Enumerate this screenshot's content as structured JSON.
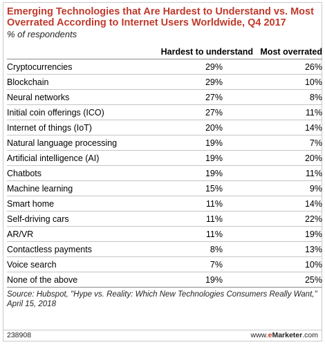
{
  "chart_data": {
    "type": "table",
    "title": "Emerging Technologies that Are Hardest to Understand vs. Most Overrated According to Internet Users Worldwide, Q4 2017",
    "subtitle": "% of respondents",
    "columns": [
      "",
      "Hardest to understand",
      "Most overrated"
    ],
    "rows": [
      {
        "label": "Cryptocurrencies",
        "hardest": "29%",
        "overrated": "26%"
      },
      {
        "label": "Blockchain",
        "hardest": "29%",
        "overrated": "10%"
      },
      {
        "label": "Neural networks",
        "hardest": "27%",
        "overrated": "8%"
      },
      {
        "label": "Initial coin offerings (ICO)",
        "hardest": "27%",
        "overrated": "11%"
      },
      {
        "label": "Internet of things (IoT)",
        "hardest": "20%",
        "overrated": "14%"
      },
      {
        "label": "Natural language processing",
        "hardest": "19%",
        "overrated": "7%"
      },
      {
        "label": "Artificial intelligence (AI)",
        "hardest": "19%",
        "overrated": "20%"
      },
      {
        "label": "Chatbots",
        "hardest": "19%",
        "overrated": "11%"
      },
      {
        "label": "Machine learning",
        "hardest": "15%",
        "overrated": "9%"
      },
      {
        "label": "Smart home",
        "hardest": "11%",
        "overrated": "14%"
      },
      {
        "label": "Self-driving cars",
        "hardest": "11%",
        "overrated": "22%"
      },
      {
        "label": "AR/VR",
        "hardest": "11%",
        "overrated": "19%"
      },
      {
        "label": "Contactless payments",
        "hardest": "8%",
        "overrated": "13%"
      },
      {
        "label": "Voice search",
        "hardest": "7%",
        "overrated": "10%"
      },
      {
        "label": "None of the above",
        "hardest": "19%",
        "overrated": "25%"
      }
    ],
    "source": "Source: Hubspot, \"Hype vs. Reality: Which New Technologies Consumers Really Want,\" April 15, 2018",
    "chart_id": "238908"
  },
  "brand": {
    "prefix": "www.",
    "e": "e",
    "name": "Marketer",
    "suffix": ".com"
  },
  "colors": {
    "title": "#c0392b",
    "brand_accent": "#c0392b",
    "rule": "#c4c4c4"
  }
}
